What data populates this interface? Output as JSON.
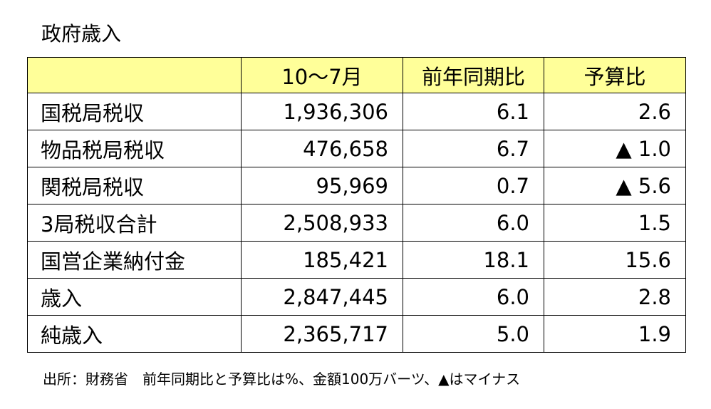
{
  "title": "政府歳入",
  "table": {
    "header": [
      "10～7月",
      "前年同期比",
      "予算比"
    ],
    "rows": [
      [
        "国税局税収",
        "1,936,306",
        "6.1",
        "2.6"
      ],
      [
        "物品税局税収",
        "476,658",
        "6.7",
        "▲ 1.0"
      ],
      [
        "関税局税収",
        "95,969",
        "0.7",
        "▲ 5.6"
      ],
      [
        "3局税収合計",
        "2,508,933",
        "6.0",
        "1.5"
      ],
      [
        "国営企業納付金",
        "185,421",
        "18.1",
        "15.6"
      ],
      [
        "歳入",
        "2,847,445",
        "6.0",
        "2.8"
      ],
      [
        "純歳入",
        "2,365,717",
        "5.0",
        "1.9"
      ]
    ]
  },
  "footnote": "出所：財務省　前年同期比と予算比は%、金額100万バーツ、▲はマイナス"
}
